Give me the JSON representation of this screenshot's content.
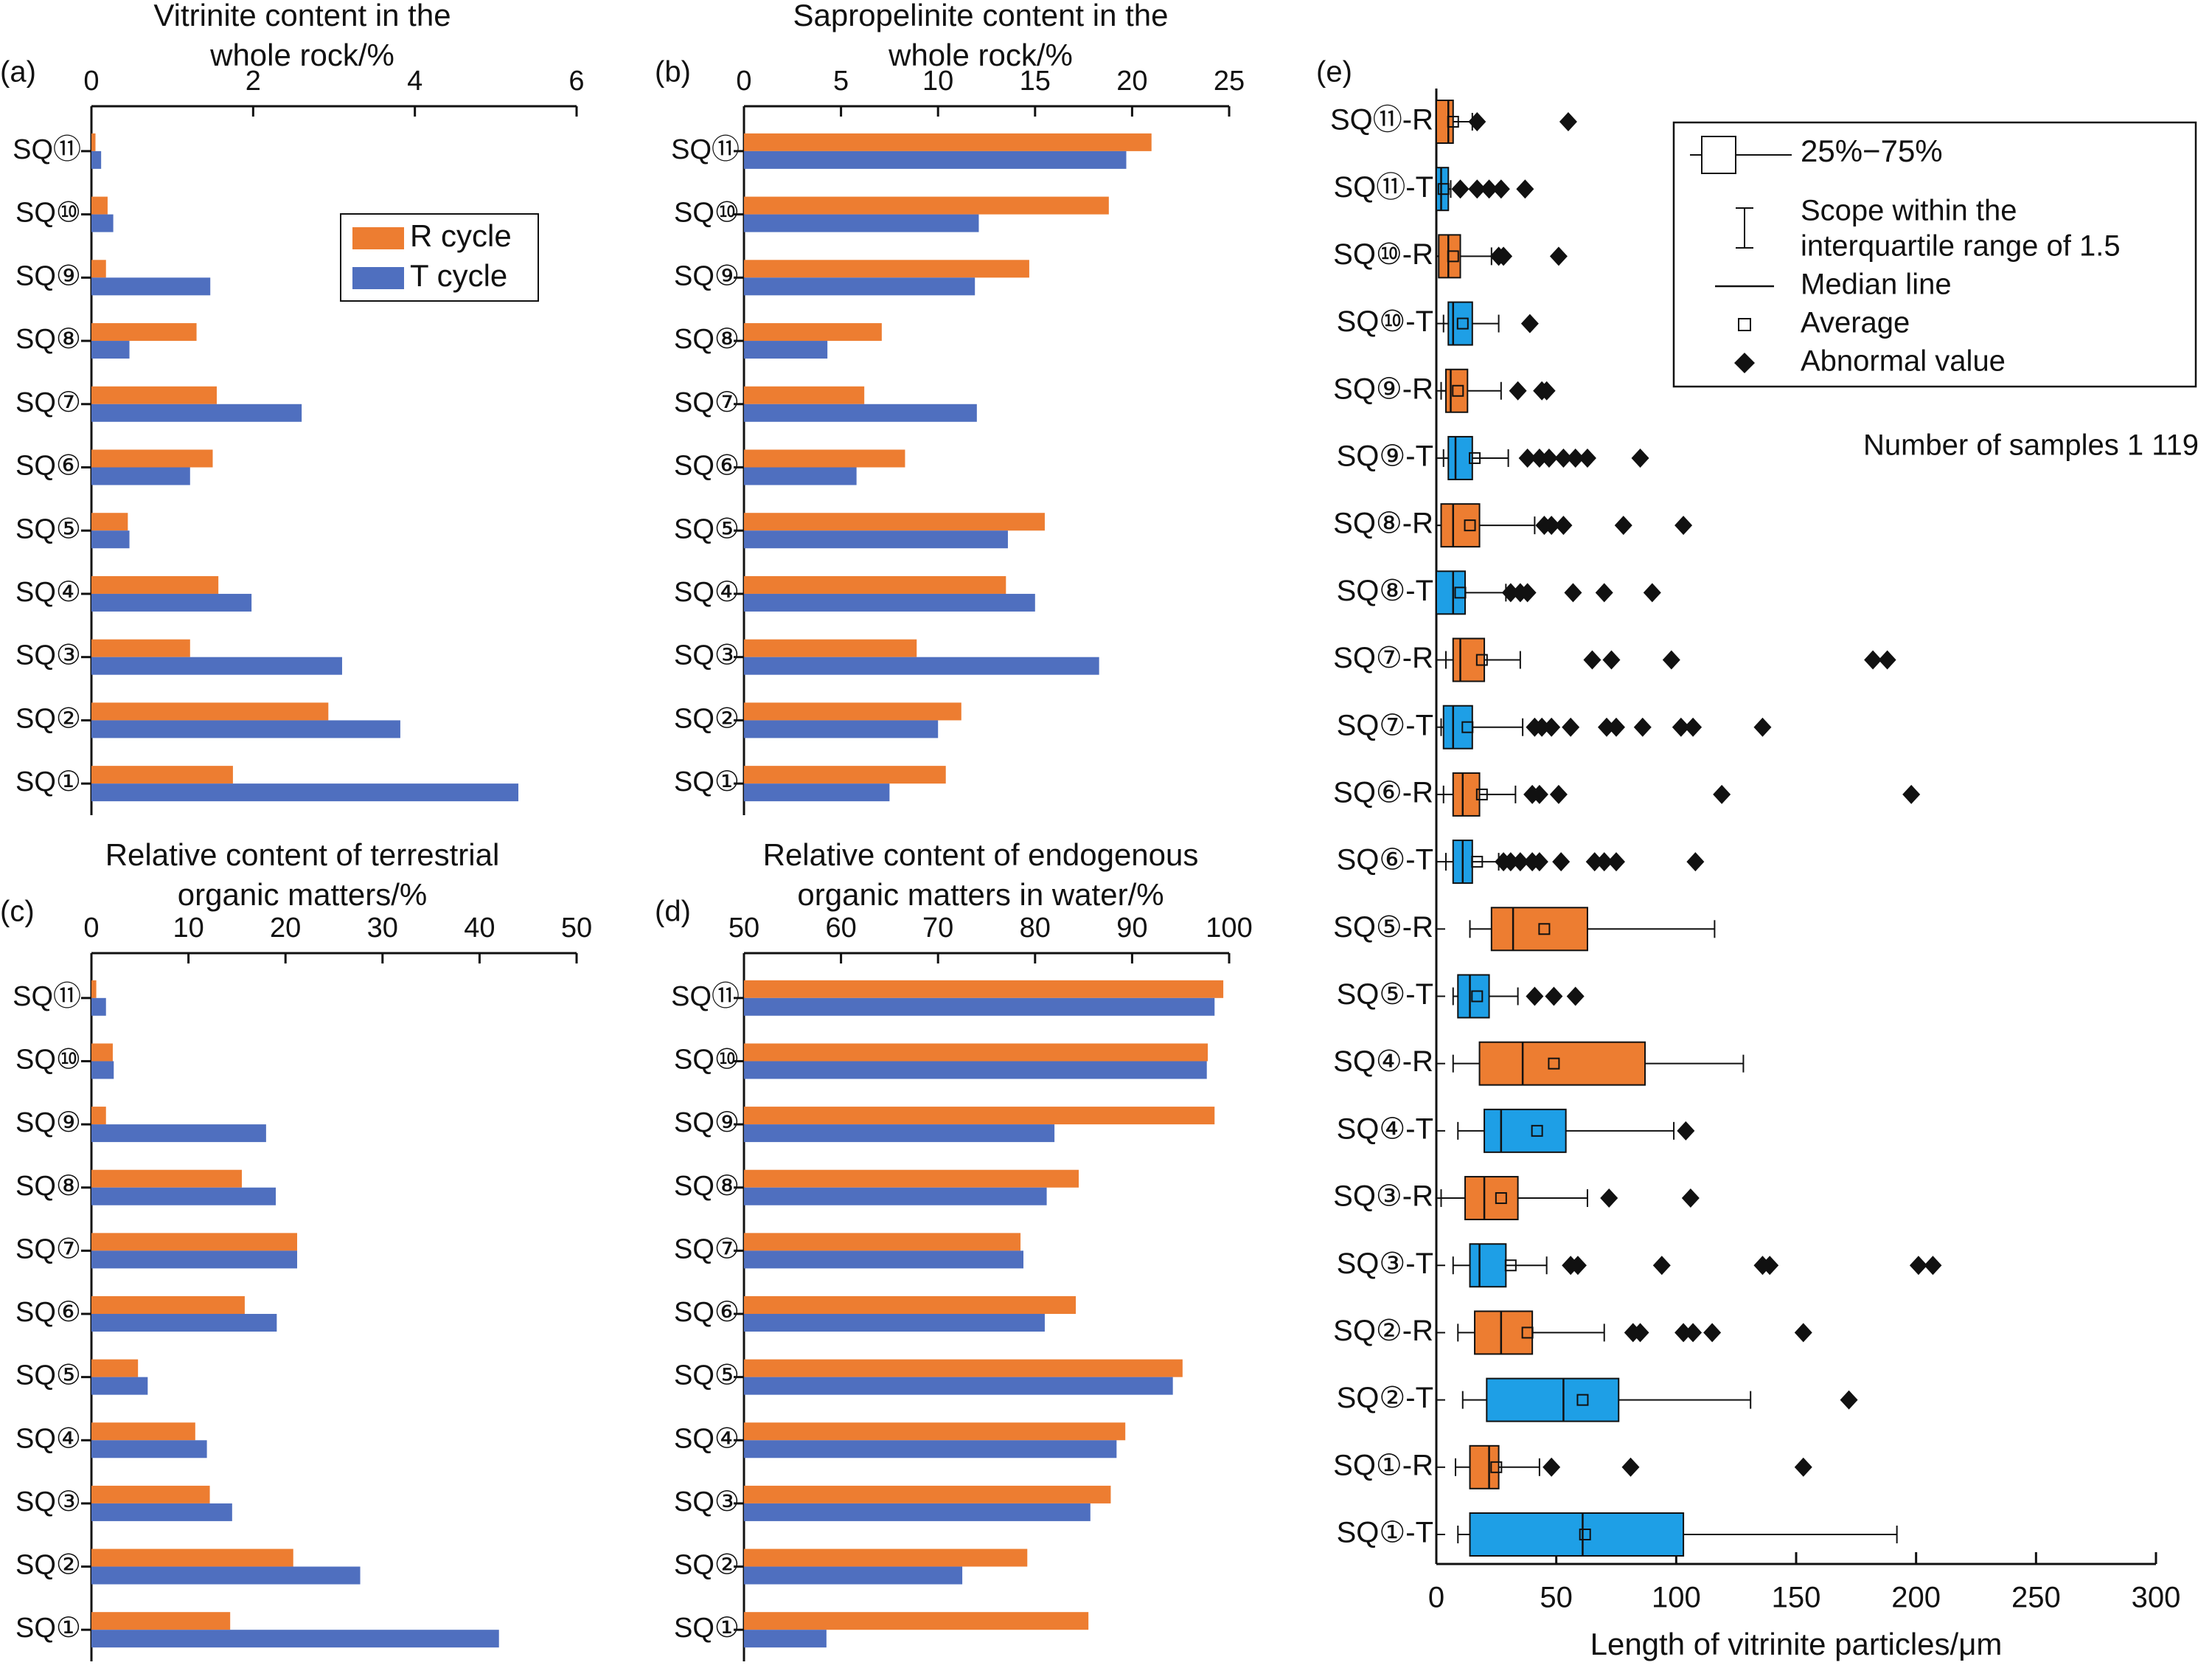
{
  "colors": {
    "r_cycle": "#ED7D31",
    "t_cycle": "#4F6FBF",
    "box_r": "#ED7D31",
    "box_t": "#1E9FE6",
    "outlier": "#111111"
  },
  "chart_data": [
    {
      "panel": "(a)",
      "type": "bar",
      "orientation": "horizontal",
      "title": "Vitrinite content in the whole rock/%",
      "title_lines": [
        "Vitrinite content in the",
        "whole rock/%"
      ],
      "categories": [
        "SQ⑪",
        "SQ⑩",
        "SQ⑨",
        "SQ⑧",
        "SQ⑦",
        "SQ⑥",
        "SQ⑤",
        "SQ④",
        "SQ③",
        "SQ②",
        "SQ①"
      ],
      "series": [
        {
          "name": "R cycle",
          "values": [
            0.05,
            0.2,
            0.18,
            1.3,
            1.55,
            1.5,
            0.45,
            1.57,
            1.22,
            2.93,
            1.75
          ]
        },
        {
          "name": "T cycle",
          "values": [
            0.12,
            0.27,
            1.47,
            0.47,
            2.6,
            1.22,
            0.47,
            1.98,
            3.1,
            3.82,
            5.28
          ]
        }
      ],
      "xlim": [
        0,
        6
      ],
      "xticks": [
        0,
        2,
        4,
        6
      ],
      "legend": "right"
    },
    {
      "panel": "(b)",
      "type": "bar",
      "orientation": "horizontal",
      "title": "Sapropelinite content in the whole rock/%",
      "title_lines": [
        "Sapropelinite content in the",
        "whole rock/%"
      ],
      "categories": [
        "SQ⑪",
        "SQ⑩",
        "SQ⑨",
        "SQ⑧",
        "SQ⑦",
        "SQ⑥",
        "SQ⑤",
        "SQ④",
        "SQ③",
        "SQ②",
        "SQ①"
      ],
      "series": [
        {
          "name": "R cycle",
          "values": [
            21,
            18.8,
            14.7,
            7.1,
            6.2,
            8.3,
            15.5,
            13.5,
            8.9,
            11.2,
            10.4
          ]
        },
        {
          "name": "T cycle",
          "values": [
            19.7,
            12.1,
            11.9,
            4.3,
            12.0,
            5.8,
            13.6,
            15.0,
            18.3,
            10.0,
            7.5
          ]
        }
      ],
      "xlim": [
        0,
        25
      ],
      "xticks": [
        0,
        5,
        10,
        15,
        20,
        25
      ]
    },
    {
      "panel": "(c)",
      "type": "bar",
      "orientation": "horizontal",
      "title": "Relative content of terrestrial organic matters/%",
      "title_lines": [
        "Relative content of terrestrial",
        "organic matters/%"
      ],
      "categories": [
        "SQ⑪",
        "SQ⑩",
        "SQ⑨",
        "SQ⑧",
        "SQ⑦",
        "SQ⑥",
        "SQ⑤",
        "SQ④",
        "SQ③",
        "SQ②",
        "SQ①"
      ],
      "series": [
        {
          "name": "R cycle",
          "values": [
            0.5,
            2.2,
            1.5,
            15.5,
            21.2,
            15.8,
            4.8,
            10.7,
            12.2,
            20.8,
            14.3
          ]
        },
        {
          "name": "T cycle",
          "values": [
            1.5,
            2.3,
            18.0,
            19.0,
            21.2,
            19.1,
            5.8,
            11.9,
            14.5,
            27.7,
            42.0
          ]
        }
      ],
      "xlim": [
        0,
        50
      ],
      "xticks": [
        0,
        10,
        20,
        30,
        40,
        50
      ]
    },
    {
      "panel": "(d)",
      "type": "bar",
      "orientation": "horizontal",
      "title": "Relative content of endogenous organic matters in water/%",
      "title_lines": [
        "Relative content of endogenous",
        "organic matters in water/%"
      ],
      "categories": [
        "SQ⑪",
        "SQ⑩",
        "SQ⑨",
        "SQ⑧",
        "SQ⑦",
        "SQ⑥",
        "SQ⑤",
        "SQ④",
        "SQ③",
        "SQ②",
        "SQ①"
      ],
      "series": [
        {
          "name": "R cycle",
          "values": [
            99.4,
            97.8,
            98.5,
            84.5,
            78.5,
            84.2,
            95.2,
            89.3,
            87.8,
            79.2,
            85.5
          ]
        },
        {
          "name": "T cycle",
          "values": [
            98.5,
            97.7,
            82.0,
            81.2,
            78.8,
            81.0,
            94.2,
            88.4,
            85.7,
            72.5,
            58.5
          ]
        }
      ],
      "xlim": [
        50,
        100
      ],
      "xticks": [
        50,
        60,
        70,
        80,
        90,
        100
      ]
    },
    {
      "panel": "(e)",
      "type": "box",
      "orientation": "horizontal",
      "xlabel": "Length of vitrinite particles/μm",
      "xlim": [
        0,
        300
      ],
      "xticks": [
        0,
        50,
        100,
        150,
        200,
        250,
        300
      ],
      "annotation": "Number of samples 1 119",
      "legend": {
        "iqr": "25%−75%",
        "whisker": "Scope within the interquartile range of 1.5",
        "whisker_lines": [
          "Scope within the",
          "interquartile range of 1.5"
        ],
        "median": "Median line",
        "average": "Average",
        "outlier": "Abnormal value"
      },
      "boxes": [
        {
          "label": "SQ⑪-R",
          "cycle": "R",
          "min": 0,
          "q1": 0,
          "median": 5,
          "q3": 7,
          "max": 15,
          "mean": 7,
          "outliers": [
            17,
            55
          ]
        },
        {
          "label": "SQ⑪-T",
          "cycle": "T",
          "min": 0,
          "q1": 0,
          "median": 2,
          "q3": 5,
          "max": 6,
          "mean": 3,
          "outliers": [
            10,
            17,
            22,
            27,
            37
          ]
        },
        {
          "label": "SQ⑩-R",
          "cycle": "R",
          "min": 0,
          "q1": 1,
          "median": 5,
          "q3": 10,
          "max": 23,
          "mean": 7,
          "outliers": [
            26,
            28,
            51
          ]
        },
        {
          "label": "SQ⑩-T",
          "cycle": "T",
          "min": 3,
          "q1": 5,
          "median": 7,
          "q3": 15,
          "max": 26,
          "mean": 11,
          "outliers": [
            39
          ]
        },
        {
          "label": "SQ⑨-R",
          "cycle": "R",
          "min": 2,
          "q1": 4,
          "median": 6,
          "q3": 13,
          "max": 27,
          "mean": 9,
          "outliers": [
            34,
            44,
            46
          ]
        },
        {
          "label": "SQ⑨-T",
          "cycle": "T",
          "min": 3,
          "q1": 5,
          "median": 8,
          "q3": 15,
          "max": 30,
          "mean": 16,
          "outliers": [
            38,
            43,
            47,
            53,
            58,
            63,
            85
          ]
        },
        {
          "label": "SQ⑧-R",
          "cycle": "R",
          "min": 0,
          "q1": 2,
          "median": 7,
          "q3": 18,
          "max": 41,
          "mean": 14,
          "outliers": [
            45,
            48,
            53,
            78,
            103
          ]
        },
        {
          "label": "SQ⑧-T",
          "cycle": "T",
          "min": 0,
          "q1": 0,
          "median": 7,
          "q3": 12,
          "max": 29,
          "mean": 10,
          "outliers": [
            31,
            35,
            38,
            57,
            70,
            90
          ]
        },
        {
          "label": "SQ⑦-R",
          "cycle": "R",
          "min": 4,
          "q1": 7,
          "median": 10,
          "q3": 20,
          "max": 35,
          "mean": 19,
          "outliers": [
            65,
            73,
            98,
            182,
            188
          ]
        },
        {
          "label": "SQ⑦-T",
          "cycle": "T",
          "min": 2,
          "q1": 3,
          "median": 7,
          "q3": 15,
          "max": 36,
          "mean": 13,
          "outliers": [
            41,
            44,
            48,
            56,
            71,
            75,
            86,
            102,
            107,
            136
          ]
        },
        {
          "label": "SQ⑥-R",
          "cycle": "R",
          "min": 3,
          "q1": 7,
          "median": 11,
          "q3": 18,
          "max": 33,
          "mean": 19,
          "outliers": [
            40,
            43,
            51,
            119,
            198
          ]
        },
        {
          "label": "SQ⑥-T",
          "cycle": "T",
          "min": 4,
          "q1": 7,
          "median": 11,
          "q3": 15,
          "max": 26,
          "mean": 17,
          "outliers": [
            28,
            31,
            35,
            40,
            43,
            52,
            66,
            70,
            75,
            108
          ]
        },
        {
          "label": "SQ⑤-R",
          "cycle": "R",
          "min": 14,
          "q1": 23,
          "median": 32,
          "q3": 63,
          "max": 116,
          "mean": 45,
          "outliers": []
        },
        {
          "label": "SQ⑤-T",
          "cycle": "T",
          "min": 7,
          "q1": 9,
          "median": 14,
          "q3": 22,
          "max": 34,
          "mean": 17,
          "outliers": [
            41,
            49,
            58
          ]
        },
        {
          "label": "SQ④-R",
          "cycle": "R",
          "min": 7,
          "q1": 18,
          "median": 36,
          "q3": 87,
          "max": 128,
          "mean": 49,
          "outliers": []
        },
        {
          "label": "SQ④-T",
          "cycle": "T",
          "min": 9,
          "q1": 20,
          "median": 27,
          "q3": 54,
          "max": 99,
          "mean": 42,
          "outliers": [
            104
          ]
        },
        {
          "label": "SQ③-R",
          "cycle": "R",
          "min": 2,
          "q1": 12,
          "median": 20,
          "q3": 34,
          "max": 63,
          "mean": 27,
          "outliers": [
            72,
            106
          ]
        },
        {
          "label": "SQ③-T",
          "cycle": "T",
          "min": 7,
          "q1": 14,
          "median": 18,
          "q3": 29,
          "max": 46,
          "mean": 31,
          "outliers": [
            56,
            59,
            94,
            136,
            139,
            201,
            207
          ]
        },
        {
          "label": "SQ②-R",
          "cycle": "R",
          "min": 9,
          "q1": 16,
          "median": 27,
          "q3": 40,
          "max": 70,
          "mean": 38,
          "outliers": [
            82,
            85,
            103,
            107,
            115,
            153
          ]
        },
        {
          "label": "SQ②-T",
          "cycle": "T",
          "min": 11,
          "q1": 21,
          "median": 53,
          "q3": 76,
          "max": 131,
          "mean": 61,
          "outliers": [
            172
          ]
        },
        {
          "label": "SQ①-R",
          "cycle": "R",
          "min": 8,
          "q1": 14,
          "median": 22,
          "q3": 26,
          "max": 43,
          "mean": 25,
          "outliers": [
            48,
            81,
            153
          ]
        },
        {
          "label": "SQ①-T",
          "cycle": "T",
          "min": 9,
          "q1": 14,
          "median": 61,
          "q3": 103,
          "max": 192,
          "mean": 62,
          "outliers": []
        }
      ]
    }
  ]
}
